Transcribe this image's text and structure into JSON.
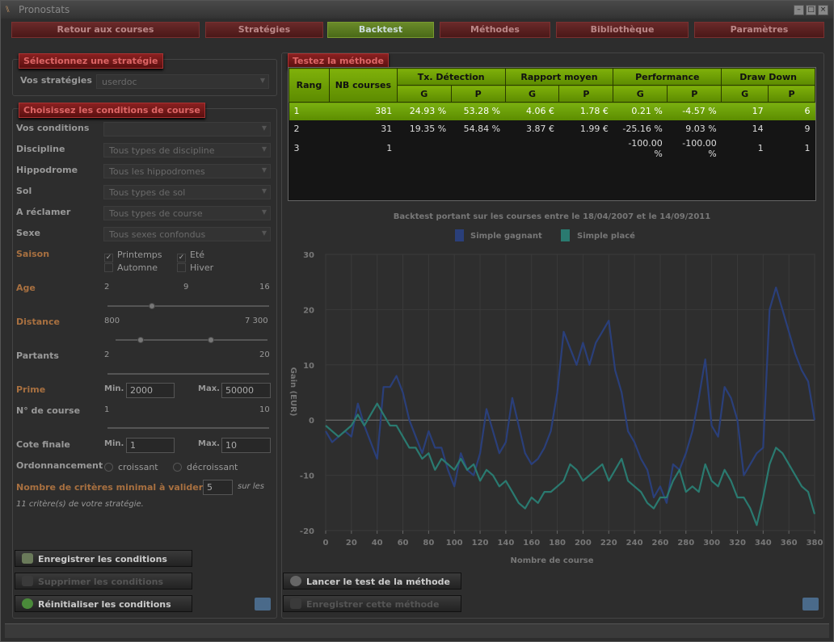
{
  "window": {
    "title": "Pronostats"
  },
  "nav": [
    {
      "label": "Retour aux courses",
      "active": false
    },
    {
      "label": "Stratégies",
      "active": false
    },
    {
      "label": "Backtest",
      "active": true
    },
    {
      "label": "Méthodes",
      "active": false
    },
    {
      "label": "Bibliothèque",
      "active": false
    },
    {
      "label": "Paramètres",
      "active": false
    }
  ],
  "strategy": {
    "header": "Sélectionnez une stratégie",
    "label": "Vos stratégies",
    "value": "userdoc"
  },
  "conditions": {
    "header": "Choisissez les conditions de course",
    "vos_conditions": "Vos conditions",
    "discipline": {
      "label": "Discipline",
      "value": "Tous types de discipline"
    },
    "hippodrome": {
      "label": "Hippodrome",
      "value": "Tous les hippodromes"
    },
    "sol": {
      "label": "Sol",
      "value": "Tous types de sol"
    },
    "reclamer": {
      "label": "A réclamer",
      "value": "Tous types de course"
    },
    "sexe": {
      "label": "Sexe",
      "value": "Tous sexes confondus"
    },
    "saison": {
      "label": "Saison",
      "printemps": "Printemps",
      "ete": "Eté",
      "automne": "Automne",
      "hiver": "Hiver"
    },
    "age": {
      "label": "Age",
      "min": "2",
      "mid": "9",
      "max": "16"
    },
    "distance": {
      "label": "Distance",
      "min": "800",
      "max": "7 300"
    },
    "partants": {
      "label": "Partants",
      "min": "2",
      "max": "20"
    },
    "prime": {
      "label": "Prime",
      "min_label": "Min.",
      "min": "2000",
      "max_label": "Max.",
      "max": "50000"
    },
    "numero": {
      "label": "N° de course",
      "min": "1",
      "max": "10"
    },
    "cote": {
      "label": "Cote finale",
      "min_label": "Min.",
      "min": "1",
      "max_label": "Max.",
      "max": "10"
    },
    "ordre": {
      "label": "Ordonnancement",
      "opt1": "croissant",
      "opt2": "décroissant"
    },
    "criteres": {
      "label": "Nombre de critères minimal à valider :",
      "value": "5",
      "suffix": "sur les",
      "note": "11 critère(s) de votre stratégie."
    }
  },
  "left_buttons": {
    "save": "Enregistrer les conditions",
    "delete": "Supprimer les conditions",
    "reset": "Réinitialiser les conditions"
  },
  "test": {
    "header": "Testez la méthode",
    "columns": {
      "rang": "Rang",
      "nb": "NB courses",
      "tx": "Tx. Détection",
      "rapport": "Rapport moyen",
      "perf": "Performance",
      "dd": "Draw Down",
      "g": "G",
      "p": "P"
    },
    "rows": [
      [
        "1",
        "381",
        "24.93 %",
        "53.28 %",
        "4.06 €",
        "1.78 €",
        "0.21 %",
        "-4.57 %",
        "17",
        "6"
      ],
      [
        "2",
        "31",
        "19.35 %",
        "54.84 %",
        "3.87 €",
        "1.99 €",
        "-25.16 %",
        "9.03 %",
        "14",
        "9"
      ],
      [
        "3",
        "1",
        "",
        "",
        "",
        "",
        "-100.00 %",
        "-100.00 %",
        "1",
        "1"
      ]
    ]
  },
  "right_buttons": {
    "launch": "Lancer le test de la méthode",
    "save": "Enregistrer cette méthode"
  },
  "chart_data": {
    "type": "line",
    "title": "Backtest portant sur les courses entre le 18/04/2007 et le 14/09/2011",
    "xlabel": "Nombre de course",
    "ylabel": "Gain (EUR)",
    "xlim": [
      0,
      380
    ],
    "ylim": [
      -20,
      30
    ],
    "xticks": [
      0,
      20,
      40,
      60,
      80,
      100,
      120,
      140,
      160,
      180,
      200,
      220,
      240,
      260,
      280,
      300,
      320,
      340,
      360,
      380
    ],
    "yticks": [
      30,
      20,
      10,
      0,
      -10,
      -20
    ],
    "legend": "top",
    "grid": true,
    "series": [
      {
        "name": "Simple gagnant",
        "color": "#2a3f7a",
        "x": [
          0,
          5,
          10,
          15,
          20,
          25,
          30,
          35,
          40,
          45,
          50,
          55,
          60,
          65,
          70,
          75,
          80,
          85,
          90,
          95,
          100,
          105,
          110,
          115,
          120,
          125,
          130,
          135,
          140,
          145,
          150,
          155,
          160,
          165,
          170,
          175,
          180,
          185,
          190,
          195,
          200,
          205,
          210,
          215,
          220,
          225,
          230,
          235,
          240,
          245,
          250,
          255,
          260,
          265,
          270,
          275,
          280,
          285,
          290,
          295,
          300,
          305,
          310,
          315,
          320,
          325,
          330,
          335,
          340,
          345,
          350,
          355,
          360,
          365,
          370,
          375,
          380
        ],
        "y": [
          -2,
          -4,
          -3,
          -2,
          -3,
          3,
          -1,
          -4,
          -7,
          6,
          6,
          8,
          5,
          0,
          -3,
          -6,
          -2,
          -5,
          -5,
          -9,
          -12,
          -6,
          -9,
          -10,
          -6,
          2,
          -2,
          -6,
          -4,
          4,
          -1,
          -6,
          -8,
          -7,
          -5,
          -2,
          5,
          16,
          13,
          10,
          14,
          10,
          14,
          16,
          18,
          9,
          5,
          -2,
          -4,
          -7,
          -9,
          -14,
          -12,
          -15,
          -8,
          -9,
          -6,
          -2,
          4,
          11,
          -1,
          -3,
          6,
          4,
          0,
          -10,
          -8,
          -6,
          -5,
          20,
          24,
          20,
          16,
          12,
          9,
          7,
          0
        ]
      },
      {
        "name": "Simple placé",
        "color": "#2a7a70",
        "x": [
          0,
          5,
          10,
          15,
          20,
          25,
          30,
          35,
          40,
          45,
          50,
          55,
          60,
          65,
          70,
          75,
          80,
          85,
          90,
          95,
          100,
          105,
          110,
          115,
          120,
          125,
          130,
          135,
          140,
          145,
          150,
          155,
          160,
          165,
          170,
          175,
          180,
          185,
          190,
          195,
          200,
          205,
          210,
          215,
          220,
          225,
          230,
          235,
          240,
          245,
          250,
          255,
          260,
          265,
          270,
          275,
          280,
          285,
          290,
          295,
          300,
          305,
          310,
          315,
          320,
          325,
          330,
          335,
          340,
          345,
          350,
          355,
          360,
          365,
          370,
          375,
          380
        ],
        "y": [
          -1,
          -2,
          -3,
          -2,
          -1,
          1,
          -1,
          1,
          3,
          1,
          -1,
          -1,
          -3,
          -5,
          -5,
          -7,
          -6,
          -9,
          -7,
          -8,
          -9,
          -7,
          -9,
          -8,
          -11,
          -9,
          -10,
          -12,
          -11,
          -13,
          -15,
          -16,
          -14,
          -15,
          -13,
          -13,
          -12,
          -11,
          -8,
          -9,
          -11,
          -10,
          -9,
          -8,
          -11,
          -9,
          -7,
          -11,
          -12,
          -13,
          -15,
          -16,
          -14,
          -14,
          -11,
          -9,
          -13,
          -12,
          -13,
          -8,
          -11,
          -12,
          -9,
          -11,
          -14,
          -14,
          -16,
          -19,
          -14,
          -8,
          -5,
          -6,
          -8,
          -10,
          -12,
          -13,
          -17
        ]
      }
    ]
  }
}
